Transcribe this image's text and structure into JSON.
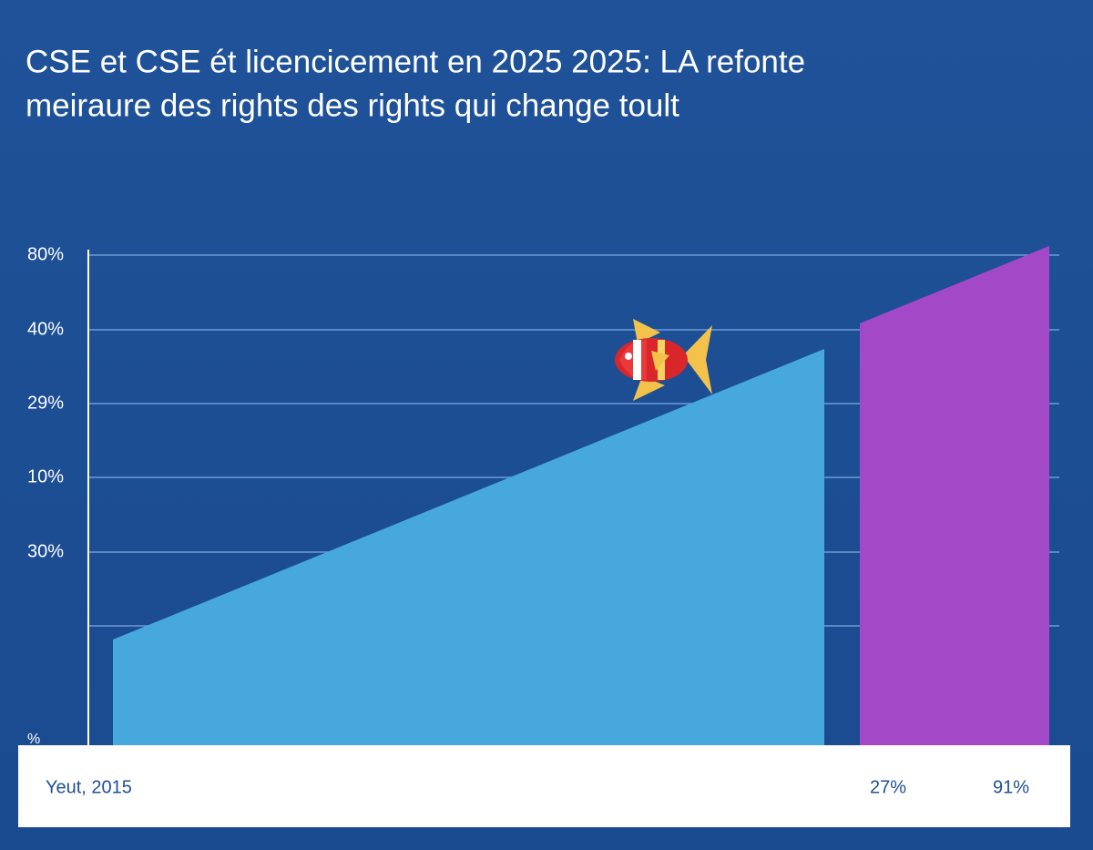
{
  "title_lines": [
    "CSE et CSE ét licencicement en 2025 2025: LA refonte",
    "meiraure des rights des rights qui change toult"
  ],
  "axis_labels": [
    "80%",
    "40%",
    "29%",
    "10%",
    "30%",
    "%"
  ],
  "footer": {
    "left": "Yeut, 2015",
    "middle": "27%",
    "right": "91%"
  }
}
